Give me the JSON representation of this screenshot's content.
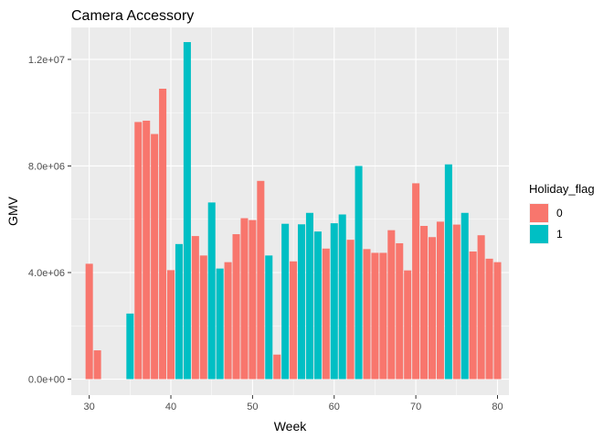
{
  "chart_data": {
    "type": "bar",
    "title": "Camera Accessory",
    "xlabel": "Week",
    "ylabel": "GMV",
    "xlim": [
      27.8,
      81.4
    ],
    "ylim": [
      -600000,
      13200000
    ],
    "x_ticks": [
      30,
      40,
      50,
      60,
      70,
      80
    ],
    "y_ticks": [
      0,
      4000000,
      8000000,
      12000000
    ],
    "y_tick_labels": [
      "0.0e+00",
      "4.0e+06",
      "8.0e+06",
      "1.2e+07"
    ],
    "grid": true,
    "legend": {
      "title": "Holiday_flag",
      "position": "right",
      "entries": [
        {
          "label": "0",
          "color": "#F8766D"
        },
        {
          "label": "1",
          "color": "#00BFC4"
        }
      ]
    },
    "series": [
      {
        "name": "0",
        "color": "#F8766D",
        "points": [
          [
            30,
            4330000
          ],
          [
            31,
            1080000
          ],
          [
            36,
            9650000
          ],
          [
            37,
            9700000
          ],
          [
            38,
            9200000
          ],
          [
            39,
            10900000
          ],
          [
            40,
            4090000
          ],
          [
            43,
            5370000
          ],
          [
            44,
            4640000
          ],
          [
            47,
            4390000
          ],
          [
            48,
            5440000
          ],
          [
            49,
            6040000
          ],
          [
            50,
            5970000
          ],
          [
            51,
            7440000
          ],
          [
            53,
            920000
          ],
          [
            55,
            4420000
          ],
          [
            59,
            4900000
          ],
          [
            62,
            5230000
          ],
          [
            64,
            4880000
          ],
          [
            65,
            4740000
          ],
          [
            66,
            4740000
          ],
          [
            67,
            5590000
          ],
          [
            68,
            5100000
          ],
          [
            69,
            4080000
          ],
          [
            70,
            7350000
          ],
          [
            71,
            5750000
          ],
          [
            72,
            5330000
          ],
          [
            73,
            5910000
          ],
          [
            75,
            5800000
          ],
          [
            77,
            4790000
          ],
          [
            78,
            5400000
          ],
          [
            79,
            4520000
          ],
          [
            80,
            4390000
          ]
        ]
      },
      {
        "name": "1",
        "color": "#00BFC4",
        "points": [
          [
            35,
            2460000
          ],
          [
            41,
            5070000
          ],
          [
            42,
            12650000
          ],
          [
            45,
            6630000
          ],
          [
            46,
            4150000
          ],
          [
            52,
            4640000
          ],
          [
            54,
            5830000
          ],
          [
            56,
            5810000
          ],
          [
            57,
            6240000
          ],
          [
            58,
            5540000
          ],
          [
            60,
            5850000
          ],
          [
            61,
            6180000
          ],
          [
            63,
            8000000
          ],
          [
            74,
            8060000
          ],
          [
            76,
            6240000
          ]
        ]
      }
    ]
  }
}
